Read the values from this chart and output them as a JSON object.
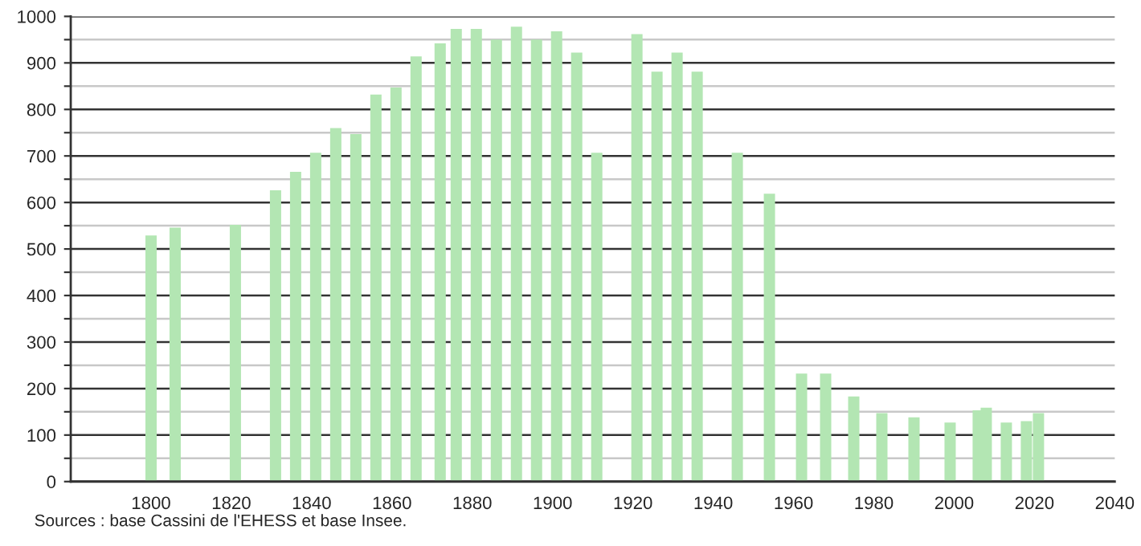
{
  "chart_data": {
    "type": "bar",
    "x": [
      1800,
      1806,
      1821,
      1831,
      1836,
      1841,
      1846,
      1851,
      1856,
      1861,
      1866,
      1872,
      1876,
      1881,
      1886,
      1891,
      1896,
      1901,
      1906,
      1911,
      1921,
      1926,
      1931,
      1936,
      1946,
      1954,
      1962,
      1968,
      1975,
      1982,
      1990,
      1999,
      2006,
      2008,
      2013,
      2018,
      2021
    ],
    "values": [
      529,
      546,
      552,
      626,
      666,
      707,
      760,
      747,
      832,
      847,
      914,
      942,
      973,
      973,
      950,
      978,
      950,
      968,
      922,
      707,
      962,
      881,
      922,
      881,
      707,
      619,
      232,
      232,
      183,
      147,
      138,
      127,
      153,
      159,
      127,
      130,
      147
    ],
    "color": "#b3e6b3",
    "xlim": [
      1780,
      2040
    ],
    "xticks": [
      1800,
      1820,
      1840,
      1860,
      1880,
      1900,
      1920,
      1940,
      1960,
      1980,
      2000,
      2020,
      2040
    ],
    "ylim": [
      0,
      1000
    ],
    "yticks": [
      0,
      {
        "value": 50,
        "label": null
      },
      100,
      {
        "value": 150,
        "label": null
      },
      200,
      {
        "value": 250,
        "label": null
      },
      300,
      {
        "value": 350,
        "label": null
      },
      400,
      {
        "value": 450,
        "label": null
      },
      500,
      {
        "value": 550,
        "label": null
      },
      600,
      {
        "value": 650,
        "label": null
      },
      700,
      {
        "value": 750,
        "label": null
      },
      800,
      {
        "value": 850,
        "label": null
      },
      900,
      {
        "value": 950,
        "label": null
      },
      1000
    ],
    "grid": "y",
    "annotations": [
      "Sources : base Cassini de l'EHESS et base Insee."
    ]
  }
}
